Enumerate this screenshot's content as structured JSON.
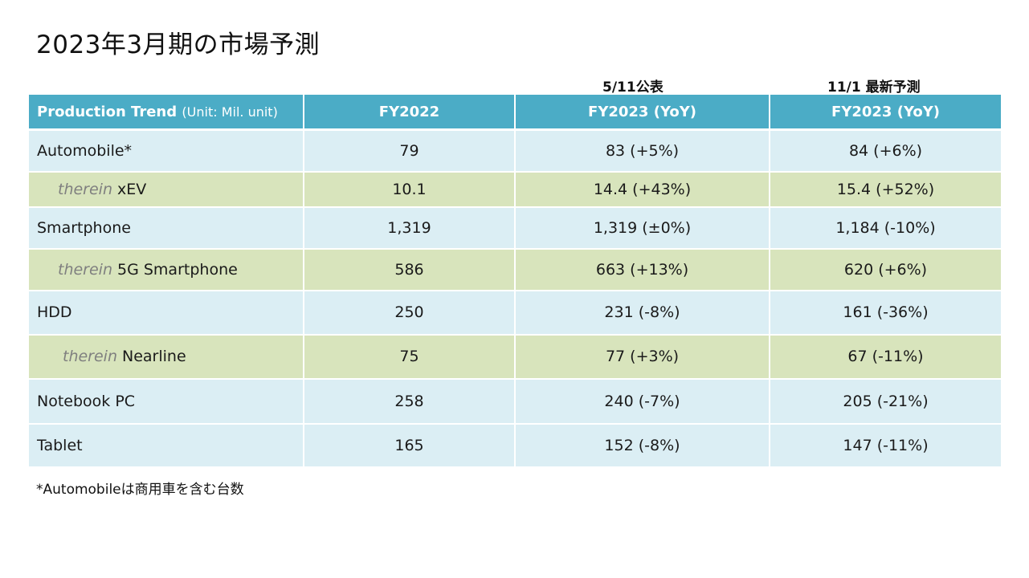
{
  "title": "2023年3月期の市場予測",
  "column_notes": {
    "mid": "5/11公表",
    "right": "11/1 最新予測"
  },
  "header": {
    "trend_label": "Production Trend",
    "unit": "(Unit: Mil. unit)",
    "col1": "FY2022",
    "col2": "FY2023 (YoY)",
    "col3": "FY2023 (YoY)"
  },
  "therein_word": "therein",
  "rows": [
    {
      "label": "Automobile*",
      "fy2022": "79",
      "fy2023_may": "83 (+5%)",
      "fy2023_nov": "84 (+6%)"
    },
    {
      "label": "xEV",
      "fy2022": "10.1",
      "fy2023_may": "14.4 (+43%)",
      "fy2023_nov": "15.4 (+52%)"
    },
    {
      "label": "Smartphone",
      "fy2022": "1,319",
      "fy2023_may": "1,319 (±0%)",
      "fy2023_nov": "1,184 (-10%)"
    },
    {
      "label": "5G Smartphone",
      "fy2022": "586",
      "fy2023_may": "663 (+13%)",
      "fy2023_nov": "620 (+6%)"
    },
    {
      "label": "HDD",
      "fy2022": "250",
      "fy2023_may": "231 (-8%)",
      "fy2023_nov": "161 (-36%)"
    },
    {
      "label": "Nearline",
      "fy2022": "75",
      "fy2023_may": "77 (+3%)",
      "fy2023_nov": "67 (-11%)"
    },
    {
      "label": "Notebook PC",
      "fy2022": "258",
      "fy2023_may": "240 (-7%)",
      "fy2023_nov": "205 (-21%)"
    },
    {
      "label": "Tablet",
      "fy2022": "165",
      "fy2023_may": "152 (-8%)",
      "fy2023_nov": "147 (-11%)"
    }
  ],
  "footnote": "*Automobileは商用車を含む台数"
}
